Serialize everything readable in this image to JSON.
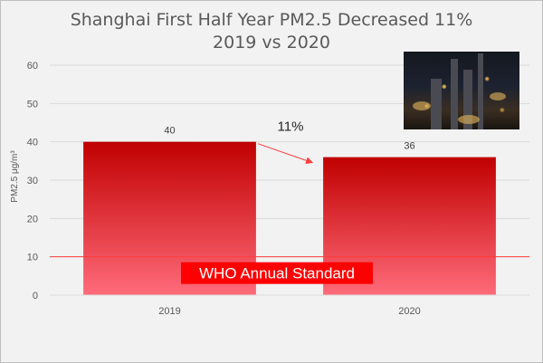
{
  "chart_data": {
    "type": "bar",
    "title_line1": "Shanghai First Half Year PM2.5 Decreased 11%",
    "title_line2": "2019 vs 2020",
    "ylabel": "PM2.5  μg/m³",
    "categories": [
      "2019",
      "2020"
    ],
    "values": [
      40,
      36
    ],
    "data_labels": [
      "40",
      "36"
    ],
    "ylim": [
      0,
      60
    ],
    "yticks": [
      0,
      10,
      20,
      30,
      40,
      50,
      60
    ],
    "grid": true,
    "bar_color_top": "#c00000",
    "bar_color_bottom": "#ff6b7a",
    "reference_line": {
      "value": 10,
      "label": "WHO Annual Standard",
      "color": "#ff3b3b"
    },
    "annotation": {
      "text": "11%"
    }
  },
  "photo": {
    "description_icon": "city-night-photo"
  }
}
